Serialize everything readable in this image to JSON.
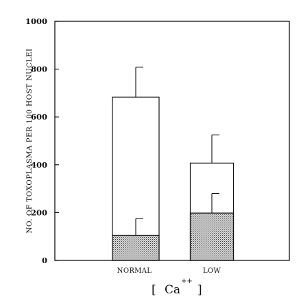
{
  "chart_data": {
    "type": "bar",
    "title": "",
    "ylabel": "NO. OF TOXOPLASMA PER 100 HOST NUCLEI",
    "xlabel": {
      "bracket_open": "[",
      "ion": "Ca",
      "charge": "++",
      "bracket_close": "]"
    },
    "ylim": [
      0,
      1000
    ],
    "yticks": [
      "0",
      "200",
      "400",
      "600",
      "800",
      "1000"
    ],
    "categories": [
      "NORMAL",
      "LOW"
    ],
    "series": [
      {
        "fill": "white",
        "values": [
          683,
          407
        ],
        "errors": [
          125,
          118
        ]
      },
      {
        "fill": "stippled",
        "values": [
          105,
          198
        ],
        "errors": [
          70,
          82
        ]
      }
    ],
    "grid": false,
    "legend": "none"
  }
}
